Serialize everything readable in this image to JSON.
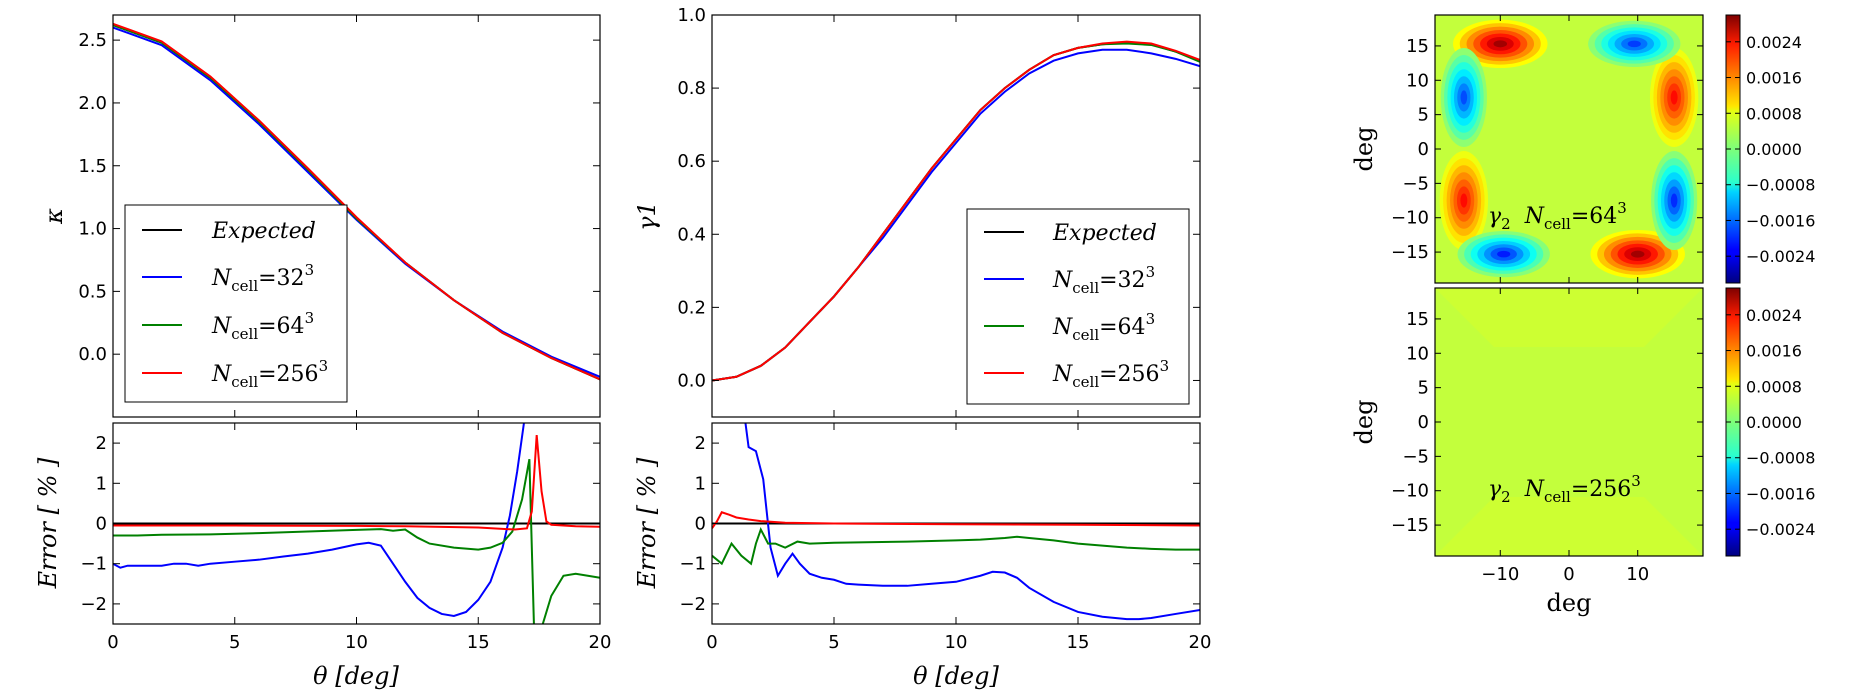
{
  "chart_data": [
    {
      "id": "kappa",
      "type": "line",
      "ylabel": "κ",
      "ylim": [
        -0.5,
        2.7
      ],
      "xlim": [
        0,
        20
      ],
      "yticks": [
        "2.5",
        "2.0",
        "1.5",
        "1.0",
        "0.5",
        "0.0"
      ],
      "ytick_values": [
        2.5,
        2.0,
        1.5,
        1.0,
        0.5,
        0.0
      ],
      "legend_position": "lower-left",
      "series": [
        {
          "name": "Expected",
          "color": "#000000",
          "x": [
            0,
            2,
            4,
            6,
            8,
            10,
            12,
            14,
            16,
            18,
            20
          ],
          "y": [
            2.62,
            2.48,
            2.2,
            1.85,
            1.47,
            1.08,
            0.73,
            0.43,
            0.17,
            -0.03,
            -0.2
          ]
        },
        {
          "name": "N_cell = 32^3",
          "color": "#0000ff",
          "x": [
            0,
            2,
            4,
            6,
            8,
            10,
            12,
            14,
            16,
            18,
            20
          ],
          "y": [
            2.6,
            2.46,
            2.18,
            1.83,
            1.45,
            1.07,
            0.72,
            0.43,
            0.18,
            -0.02,
            -0.18
          ]
        },
        {
          "name": "N_cell = 64^3",
          "color": "#008000",
          "x": [
            0,
            2,
            4,
            6,
            8,
            10,
            12,
            14,
            16,
            18,
            20
          ],
          "y": [
            2.62,
            2.48,
            2.2,
            1.85,
            1.47,
            1.08,
            0.73,
            0.43,
            0.17,
            -0.03,
            -0.2
          ]
        },
        {
          "name": "N_cell = 256^3",
          "color": "#ff0000",
          "x": [
            0,
            2,
            4,
            6,
            8,
            10,
            12,
            14,
            16,
            18,
            20
          ],
          "y": [
            2.63,
            2.49,
            2.21,
            1.86,
            1.48,
            1.09,
            0.73,
            0.43,
            0.17,
            -0.03,
            -0.2
          ]
        }
      ],
      "legend": {
        "expected": "Expected",
        "n32": {
          "prefix": "N",
          "sub": "cell",
          "eq": "=32",
          "sup": "3"
        },
        "n64": {
          "prefix": "N",
          "sub": "cell",
          "eq": "=64",
          "sup": "3"
        },
        "n256": {
          "prefix": "N",
          "sub": "cell",
          "eq": "=256",
          "sup": "3"
        }
      }
    },
    {
      "id": "kappa_error",
      "type": "line",
      "xlabel": "θ [deg]",
      "ylabel": "Error [ % ]",
      "xlim": [
        0,
        20
      ],
      "ylim": [
        -2.5,
        2.5
      ],
      "xticks": [
        "0",
        "5",
        "10",
        "15",
        "20"
      ],
      "yticks": [
        "2",
        "1",
        "0",
        "−1",
        "−2"
      ],
      "ytick_values": [
        2,
        1,
        0,
        -1,
        -2
      ],
      "series": [
        {
          "name": "Expected",
          "color": "#000000",
          "x": [
            0,
            20
          ],
          "y": [
            0,
            0
          ]
        },
        {
          "name": "N_cell = 32^3",
          "color": "#0000ff",
          "x": [
            0,
            0.3,
            0.6,
            1,
            1.5,
            2,
            2.5,
            3,
            3.5,
            4,
            5,
            6,
            7,
            8,
            9,
            10,
            10.5,
            11,
            11.5,
            12,
            12.5,
            13,
            13.5,
            14,
            14.5,
            15,
            15.5,
            16,
            16.3,
            16.6,
            16.9,
            17.1
          ],
          "y": [
            -1.0,
            -1.1,
            -1.05,
            -1.05,
            -1.05,
            -1.05,
            -1.0,
            -1.0,
            -1.05,
            -1.0,
            -0.95,
            -0.9,
            -0.82,
            -0.75,
            -0.65,
            -0.52,
            -0.48,
            -0.55,
            -1.0,
            -1.45,
            -1.85,
            -2.1,
            -2.25,
            -2.3,
            -2.2,
            -1.9,
            -1.45,
            -0.6,
            0.2,
            1.3,
            2.6,
            4.0
          ]
        },
        {
          "name": "N_cell = 64^3",
          "color": "#008000",
          "x": [
            0,
            1,
            2,
            4,
            6,
            8,
            10,
            11,
            11.5,
            12,
            12.5,
            13,
            14,
            15,
            15.5,
            16,
            16.4,
            16.8,
            17.1,
            17.3,
            17.5,
            18,
            18.5,
            19,
            19.5,
            20
          ],
          "y": [
            -0.3,
            -0.3,
            -0.28,
            -0.27,
            -0.24,
            -0.2,
            -0.16,
            -0.14,
            -0.18,
            -0.15,
            -0.35,
            -0.5,
            -0.6,
            -0.65,
            -0.6,
            -0.48,
            -0.2,
            0.6,
            1.6,
            -2.8,
            -2.8,
            -1.8,
            -1.3,
            -1.25,
            -1.3,
            -1.35
          ]
        },
        {
          "name": "N_cell = 256^3",
          "color": "#ff0000",
          "x": [
            0,
            5,
            10,
            12,
            15,
            16.5,
            17,
            17.2,
            17.4,
            17.6,
            17.8,
            18,
            19,
            20
          ],
          "y": [
            -0.05,
            -0.05,
            -0.06,
            -0.07,
            -0.1,
            -0.15,
            -0.12,
            0.3,
            2.2,
            0.8,
            0.05,
            -0.03,
            -0.07,
            -0.08
          ]
        }
      ]
    },
    {
      "id": "gamma1",
      "type": "line",
      "ylabel": "γ1",
      "xlim": [
        0,
        20
      ],
      "ylim": [
        -0.1,
        1.0
      ],
      "yticks": [
        "1.0",
        "0.8",
        "0.6",
        "0.4",
        "0.2",
        "0.0"
      ],
      "ytick_values": [
        1.0,
        0.8,
        0.6,
        0.4,
        0.2,
        0.0
      ],
      "legend_position": "lower-right",
      "series": [
        {
          "name": "Expected",
          "color": "#000000",
          "x": [
            0,
            1,
            2,
            3,
            4,
            5,
            6,
            7,
            8,
            9,
            10,
            11,
            12,
            13,
            14,
            15,
            16,
            17,
            18,
            19,
            20
          ],
          "y": [
            0.0,
            0.01,
            0.04,
            0.09,
            0.16,
            0.23,
            0.31,
            0.4,
            0.49,
            0.58,
            0.66,
            0.74,
            0.8,
            0.85,
            0.89,
            0.91,
            0.92,
            0.925,
            0.92,
            0.9,
            0.875
          ]
        },
        {
          "name": "N_cell = 32^3",
          "color": "#0000ff",
          "x": [
            0,
            1,
            2,
            3,
            4,
            5,
            6,
            7,
            8,
            9,
            10,
            11,
            12,
            13,
            14,
            15,
            16,
            17,
            18,
            19,
            20
          ],
          "y": [
            0.0,
            0.01,
            0.04,
            0.09,
            0.16,
            0.23,
            0.31,
            0.39,
            0.48,
            0.57,
            0.65,
            0.73,
            0.79,
            0.84,
            0.875,
            0.895,
            0.905,
            0.905,
            0.895,
            0.88,
            0.86
          ]
        },
        {
          "name": "N_cell = 64^3",
          "color": "#008000",
          "x": [
            0,
            1,
            2,
            3,
            4,
            5,
            6,
            7,
            8,
            9,
            10,
            11,
            12,
            13,
            14,
            15,
            16,
            17,
            18,
            19,
            20
          ],
          "y": [
            0.0,
            0.01,
            0.04,
            0.09,
            0.16,
            0.23,
            0.31,
            0.4,
            0.49,
            0.58,
            0.66,
            0.74,
            0.8,
            0.85,
            0.89,
            0.91,
            0.92,
            0.922,
            0.918,
            0.9,
            0.872
          ]
        },
        {
          "name": "N_cell = 256^3",
          "color": "#ff0000",
          "x": [
            0,
            1,
            2,
            3,
            4,
            5,
            6,
            7,
            8,
            9,
            10,
            11,
            12,
            13,
            14,
            15,
            16,
            17,
            18,
            19,
            20
          ],
          "y": [
            0.0,
            0.01,
            0.04,
            0.09,
            0.16,
            0.23,
            0.31,
            0.4,
            0.49,
            0.58,
            0.66,
            0.74,
            0.8,
            0.85,
            0.89,
            0.91,
            0.922,
            0.927,
            0.922,
            0.902,
            0.877
          ]
        }
      ],
      "legend": {
        "expected": "Expected",
        "n32": {
          "prefix": "N",
          "sub": "cell",
          "eq": "=32",
          "sup": "3"
        },
        "n64": {
          "prefix": "N",
          "sub": "cell",
          "eq": "=64",
          "sup": "3"
        },
        "n256": {
          "prefix": "N",
          "sub": "cell",
          "eq": "=256",
          "sup": "3"
        }
      }
    },
    {
      "id": "gamma1_error",
      "type": "line",
      "xlabel": "θ [deg]",
      "ylabel": "Error [ % ]",
      "xlim": [
        0,
        20
      ],
      "ylim": [
        -2.5,
        2.5
      ],
      "xticks": [
        "0",
        "5",
        "10",
        "15",
        "20"
      ],
      "yticks": [
        "2",
        "1",
        "0",
        "−1",
        "−2"
      ],
      "ytick_values": [
        2,
        1,
        0,
        -1,
        -2
      ],
      "series": [
        {
          "name": "Expected",
          "color": "#000000",
          "x": [
            0,
            20
          ],
          "y": [
            0,
            0
          ]
        },
        {
          "name": "N_cell = 32^3",
          "color": "#0000ff",
          "x": [
            1.35,
            1.5,
            1.8,
            2.1,
            2.4,
            2.7,
            3.0,
            3.3,
            3.6,
            4,
            4.5,
            5,
            5.5,
            6,
            7,
            8,
            9,
            10,
            11,
            11.5,
            12,
            12.5,
            13,
            14,
            15,
            16,
            17,
            17.5,
            18,
            19,
            20
          ],
          "y": [
            2.6,
            1.9,
            1.8,
            1.1,
            -0.6,
            -1.3,
            -1.0,
            -0.75,
            -1.0,
            -1.25,
            -1.35,
            -1.4,
            -1.5,
            -1.52,
            -1.55,
            -1.55,
            -1.5,
            -1.45,
            -1.3,
            -1.2,
            -1.22,
            -1.35,
            -1.6,
            -1.95,
            -2.2,
            -2.32,
            -2.38,
            -2.38,
            -2.35,
            -2.25,
            -2.15
          ]
        },
        {
          "name": "N_cell = 64^3",
          "color": "#008000",
          "x": [
            0,
            0.4,
            0.8,
            1.2,
            1.6,
            1.8,
            2.0,
            2.3,
            2.6,
            3,
            3.5,
            4,
            5,
            6,
            8,
            10,
            11,
            12,
            12.5,
            13,
            14,
            15,
            16,
            17,
            18,
            19,
            20
          ],
          "y": [
            -0.8,
            -1.0,
            -0.5,
            -0.8,
            -1.0,
            -0.5,
            -0.15,
            -0.5,
            -0.5,
            -0.6,
            -0.45,
            -0.5,
            -0.48,
            -0.47,
            -0.45,
            -0.42,
            -0.4,
            -0.36,
            -0.33,
            -0.36,
            -0.42,
            -0.5,
            -0.55,
            -0.6,
            -0.63,
            -0.65,
            -0.65
          ]
        },
        {
          "name": "N_cell = 256^3",
          "color": "#ff0000",
          "x": [
            0,
            0.2,
            0.4,
            0.7,
            1,
            1.5,
            2,
            3,
            5,
            10,
            15,
            20
          ],
          "y": [
            -0.12,
            0.05,
            0.28,
            0.22,
            0.15,
            0.1,
            0.06,
            0.02,
            0.0,
            -0.02,
            -0.03,
            -0.05
          ]
        }
      ]
    },
    {
      "id": "gamma2_64",
      "type": "heatmap",
      "xlabel": "",
      "ylabel": "deg",
      "annotation": {
        "sym": "γ",
        "symsub": "2",
        "prefix": "N",
        "sub": "cell",
        "eq": "=64",
        "sup": "3"
      },
      "extent": [
        -19.5,
        19.5,
        -19.5,
        19.5
      ],
      "yticks": [
        "15",
        "10",
        "5",
        "0",
        "−5",
        "−10",
        "−15"
      ],
      "ytick_values": [
        15,
        10,
        5,
        0,
        -5,
        -10,
        -15
      ],
      "colorbar_range": [
        -0.003,
        0.003
      ],
      "colorbar_ticks": [
        "0.0024",
        "0.0016",
        "0.0008",
        "0.0000",
        "−0.0008",
        "−0.0016",
        "−0.0024"
      ],
      "colorbar_tick_values": [
        0.0024,
        0.0016,
        0.0008,
        0.0,
        -0.0008,
        -0.0016,
        -0.0024
      ],
      "colormap": "jet",
      "blobs": [
        {
          "x": -10,
          "y": 15.3,
          "value": 0.0028,
          "sx": 4.3,
          "sy": 2.2
        },
        {
          "x": 10,
          "y": -15.3,
          "value": 0.0028,
          "sx": 4.3,
          "sy": 2.2
        },
        {
          "x": 15.3,
          "y": 7.5,
          "value": 0.0022,
          "sx": 2.2,
          "sy": 4.5
        },
        {
          "x": -15.3,
          "y": -7.5,
          "value": 0.0022,
          "sx": 2.2,
          "sy": 4.5
        },
        {
          "x": 9.5,
          "y": 15.3,
          "value": -0.0019,
          "sx": 4.2,
          "sy": 2.1
        },
        {
          "x": -9.5,
          "y": -15.3,
          "value": -0.0021,
          "sx": 4.2,
          "sy": 2.1
        },
        {
          "x": -15.3,
          "y": 7.5,
          "value": -0.0018,
          "sx": 2.1,
          "sy": 4.5
        },
        {
          "x": 15.3,
          "y": -7.5,
          "value": -0.002,
          "sx": 2.1,
          "sy": 4.5
        }
      ],
      "background_value": 0.0004
    },
    {
      "id": "gamma2_256",
      "type": "heatmap",
      "xlabel": "deg",
      "ylabel": "deg",
      "annotation": {
        "sym": "γ",
        "symsub": "2",
        "prefix": "N",
        "sub": "cell",
        "eq": "=256",
        "sup": "3"
      },
      "extent": [
        -19.5,
        19.5,
        -19.5,
        19.5
      ],
      "xticks": [
        "−10",
        "0",
        "10"
      ],
      "xtick_values": [
        -10,
        0,
        10
      ],
      "yticks": [
        "15",
        "10",
        "5",
        "0",
        "−5",
        "−10",
        "−15"
      ],
      "ytick_values": [
        15,
        10,
        5,
        0,
        -5,
        -10,
        -15
      ],
      "colorbar_range": [
        -0.003,
        0.003
      ],
      "colorbar_ticks": [
        "0.0024",
        "0.0016",
        "0.0008",
        "0.0000",
        "−0.0008",
        "−0.0016",
        "−0.0024"
      ],
      "colorbar_tick_values": [
        0.0024,
        0.0016,
        0.0008,
        0.0,
        -0.0008,
        -0.0016,
        -0.0024
      ],
      "colormap": "jet",
      "background_value": 0.0004
    }
  ]
}
